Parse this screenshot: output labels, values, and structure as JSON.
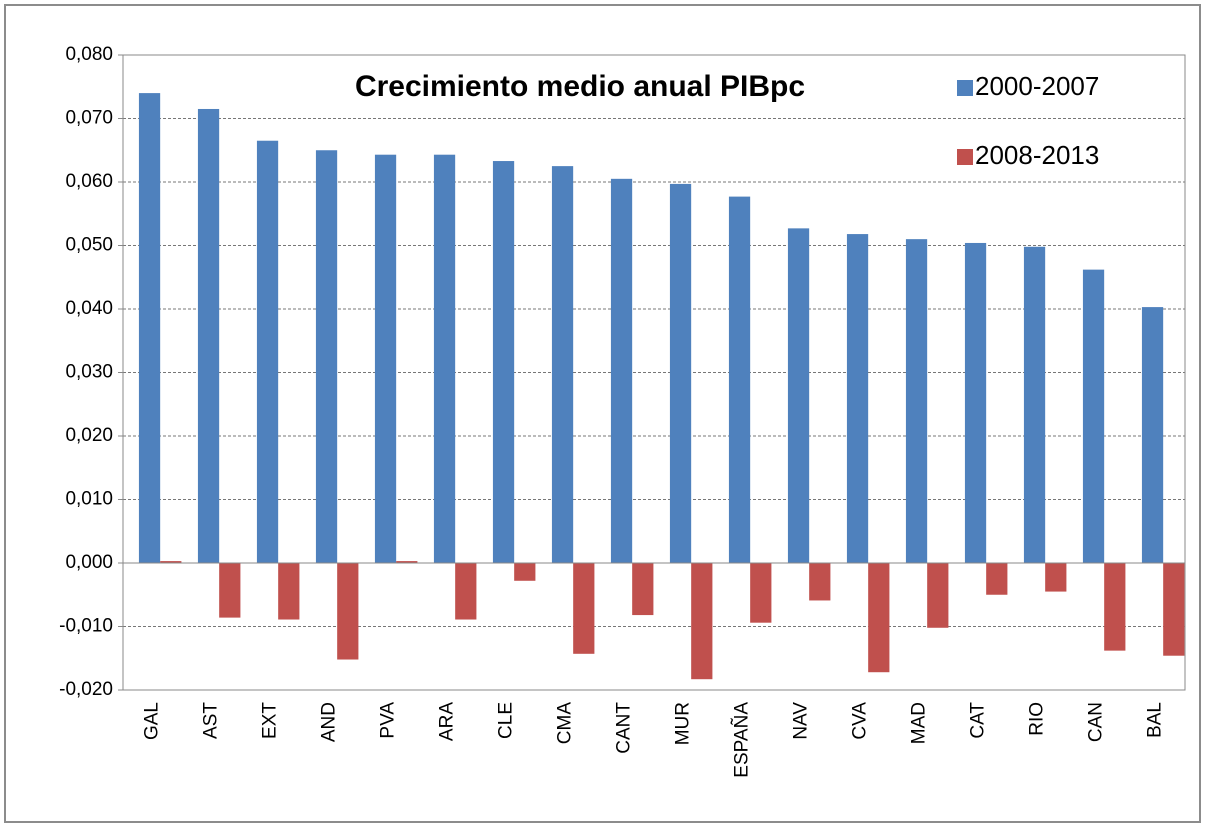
{
  "chart_data": {
    "type": "bar",
    "title": "Crecimiento medio anual  PIBpc",
    "categories": [
      "GAL",
      "AST",
      "EXT",
      "AND",
      "PVA",
      "ARA",
      "CLE",
      "CMA",
      "CANT",
      "MUR",
      "ESPAÑA",
      "NAV",
      "CVA",
      "MAD",
      "CAT",
      "RIO",
      "CAN",
      "BAL"
    ],
    "series": [
      {
        "name": "2000-2007",
        "color": "#4f81bd",
        "values": [
          0.074,
          0.0715,
          0.0665,
          0.065,
          0.0643,
          0.0643,
          0.0633,
          0.0625,
          0.0605,
          0.0597,
          0.0577,
          0.0527,
          0.0518,
          0.051,
          0.0504,
          0.0498,
          0.0462,
          0.0403
        ]
      },
      {
        "name": "2008-2013",
        "color": "#c0504d",
        "values": [
          0.0003,
          -0.0086,
          -0.0089,
          -0.0152,
          0.0003,
          -0.0089,
          -0.0028,
          -0.0143,
          -0.0082,
          -0.0183,
          -0.0094,
          -0.0059,
          -0.0172,
          -0.0102,
          -0.005,
          -0.0045,
          -0.0138,
          -0.0146
        ]
      }
    ],
    "ylim": [
      -0.02,
      0.08
    ],
    "yticks": [
      {
        "value": -0.02,
        "label": "-0,020"
      },
      {
        "value": -0.01,
        "label": "-0,010"
      },
      {
        "value": 0,
        "label": "0,000"
      },
      {
        "value": 0.01,
        "label": "0,010"
      },
      {
        "value": 0.02,
        "label": "0,020"
      },
      {
        "value": 0.03,
        "label": "0,030"
      },
      {
        "value": 0.04,
        "label": "0,040"
      },
      {
        "value": 0.05,
        "label": "0,050"
      },
      {
        "value": 0.06,
        "label": "0,060"
      },
      {
        "value": 0.07,
        "label": "0,070"
      },
      {
        "value": 0.08,
        "label": "0,080"
      }
    ],
    "grid": true,
    "legend": "top-right"
  }
}
